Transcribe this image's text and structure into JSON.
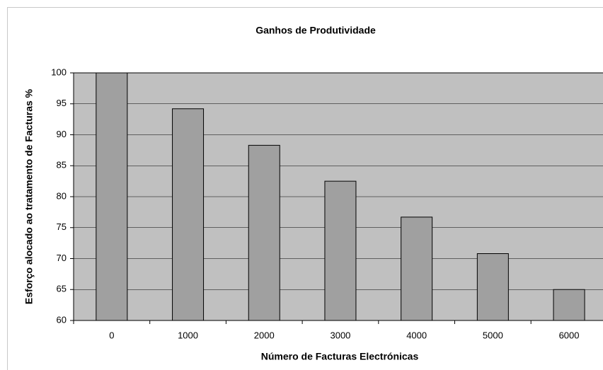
{
  "chart_data": {
    "type": "bar",
    "title": "Ganhos de Produtividade",
    "x_label": "Número de Facturas Electrónicas",
    "y_label": "Esforço alocado ao tratamento de Facturas %",
    "categories": [
      "0",
      "1000",
      "2000",
      "3000",
      "4000",
      "5000",
      "6000"
    ],
    "values": [
      100,
      94.2,
      88.3,
      82.5,
      76.7,
      70.8,
      65.0
    ],
    "color": "#a0a0a0",
    "ylim": [
      60,
      100
    ],
    "yticks": [
      60,
      65,
      70,
      75,
      80,
      85,
      90,
      95,
      100
    ],
    "grid": true
  }
}
